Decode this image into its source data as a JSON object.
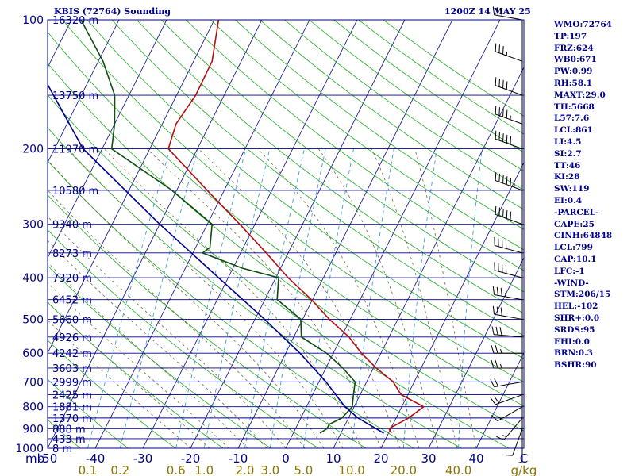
{
  "chart_data": {
    "type": "skew-t log-p sounding",
    "title_left": "KBIS (72764) Sounding",
    "title_right": "1200Z 14 MAY 25",
    "pressure_ticks": [
      100,
      200,
      300,
      400,
      500,
      600,
      700,
      800,
      900,
      1000
    ],
    "temperature_ticks": [
      "-50",
      "-40",
      "-30",
      "-20",
      "-10",
      "0",
      "10",
      "20",
      "30",
      "40",
      "C"
    ],
    "temperature_ticks_values": [
      -50,
      -40,
      -30,
      -20,
      -10,
      0,
      10,
      20,
      30,
      40
    ],
    "mixing_ratio_ticks": [
      "0.1",
      "0.2",
      "0.6",
      "1.0",
      "2.0",
      "3.0",
      "5.0",
      "10.0",
      "20.0",
      "40.0",
      "g/kg"
    ],
    "mixing_ratio_values": [
      0.1,
      0.2,
      0.6,
      1.0,
      2.0,
      3.0,
      5.0,
      10.0,
      20.0,
      40.0
    ],
    "mb_label": "mb",
    "height_labels": [
      {
        "p": 100,
        "text": "16320 m"
      },
      {
        "p": 150,
        "text": "13750 m"
      },
      {
        "p": 200,
        "text": "11970 m"
      },
      {
        "p": 250,
        "text": "10580 m"
      },
      {
        "p": 300,
        "text": "9340 m"
      },
      {
        "p": 350,
        "text": "8273 m"
      },
      {
        "p": 400,
        "text": "7320 m"
      },
      {
        "p": 450,
        "text": "6452 m"
      },
      {
        "p": 500,
        "text": "5660 m"
      },
      {
        "p": 550,
        "text": "4926 m"
      },
      {
        "p": 600,
        "text": "4242 m"
      },
      {
        "p": 650,
        "text": "3603 m"
      },
      {
        "p": 700,
        "text": "2999 m"
      },
      {
        "p": 750,
        "text": "2425 m"
      },
      {
        "p": 800,
        "text": "1881 m"
      },
      {
        "p": 850,
        "text": "1370 m"
      },
      {
        "p": 900,
        "text": "888 m"
      },
      {
        "p": 950,
        "text": "433 m"
      },
      {
        "p": 1000,
        "text": "8 m"
      }
    ],
    "series": [
      {
        "name": "Temperature",
        "color": "#b01010",
        "points": [
          {
            "p": 922,
            "t": 20.6
          },
          {
            "p": 900,
            "t": 19.6
          },
          {
            "p": 850,
            "t": 22.6
          },
          {
            "p": 800,
            "t": 24.6
          },
          {
            "p": 750,
            "t": 18.6
          },
          {
            "p": 700,
            "t": 15.6
          },
          {
            "p": 650,
            "t": 10.6
          },
          {
            "p": 600,
            "t": 5.9
          },
          {
            "p": 550,
            "t": 1.6
          },
          {
            "p": 500,
            "t": -4.4
          },
          {
            "p": 450,
            "t": -10.2
          },
          {
            "p": 400,
            "t": -17.4
          },
          {
            "p": 350,
            "t": -24.6
          },
          {
            "p": 300,
            "t": -33.2
          },
          {
            "p": 250,
            "t": -43.6
          },
          {
            "p": 200,
            "t": -56.1
          },
          {
            "p": 175,
            "t": -57.1
          },
          {
            "p": 150,
            "t": -56.0
          },
          {
            "p": 125,
            "t": -56.1
          },
          {
            "p": 100,
            "t": -59.1
          }
        ]
      },
      {
        "name": "Dewpoint",
        "color": "#0d4d0d",
        "points": [
          {
            "p": 922,
            "t": 5.6
          },
          {
            "p": 900,
            "t": 6.6
          },
          {
            "p": 880,
            "t": 6.6
          },
          {
            "p": 850,
            "t": 8.6
          },
          {
            "p": 800,
            "t": 9.6
          },
          {
            "p": 750,
            "t": 8.6
          },
          {
            "p": 700,
            "t": 7.6
          },
          {
            "p": 650,
            "t": 3.6
          },
          {
            "p": 600,
            "t": -1.4
          },
          {
            "p": 550,
            "t": -8.4
          },
          {
            "p": 500,
            "t": -10.4
          },
          {
            "p": 450,
            "t": -17.4
          },
          {
            "p": 400,
            "t": -19.4
          },
          {
            "p": 380,
            "t": -28.0
          },
          {
            "p": 350,
            "t": -38.0
          },
          {
            "p": 340,
            "t": -37.0
          },
          {
            "p": 300,
            "t": -39.0
          },
          {
            "p": 250,
            "t": -51.0
          },
          {
            "p": 200,
            "t": -68.0
          },
          {
            "p": 175,
            "t": -70.0
          },
          {
            "p": 150,
            "t": -73.0
          },
          {
            "p": 125,
            "t": -79.0
          },
          {
            "p": 100,
            "t": -88.0
          }
        ]
      },
      {
        "name": "Parcel",
        "color": "#00008b",
        "points": [
          {
            "p": 922,
            "t": 19.0
          },
          {
            "p": 850,
            "t": 12.0
          },
          {
            "p": 799,
            "t": 8.0
          },
          {
            "p": 700,
            "t": 1.5
          },
          {
            "p": 600,
            "t": -7.0
          },
          {
            "p": 500,
            "t": -18.0
          },
          {
            "p": 400,
            "t": -32.0
          },
          {
            "p": 300,
            "t": -50.0
          },
          {
            "p": 200,
            "t": -74.0
          },
          {
            "p": 120,
            "t": -95.0
          }
        ]
      }
    ],
    "wind_barbs": [
      {
        "p": 922,
        "dir": 180,
        "spd": 5
      },
      {
        "p": 900,
        "dir": 200,
        "spd": 10
      },
      {
        "p": 850,
        "dir": 220,
        "spd": 15
      },
      {
        "p": 800,
        "dir": 240,
        "spd": 15
      },
      {
        "p": 750,
        "dir": 250,
        "spd": 20
      },
      {
        "p": 700,
        "dir": 260,
        "spd": 20
      },
      {
        "p": 650,
        "dir": 270,
        "spd": 25
      },
      {
        "p": 600,
        "dir": 270,
        "spd": 25
      },
      {
        "p": 550,
        "dir": 275,
        "spd": 30
      },
      {
        "p": 500,
        "dir": 280,
        "spd": 30
      },
      {
        "p": 450,
        "dir": 280,
        "spd": 35
      },
      {
        "p": 400,
        "dir": 285,
        "spd": 40
      },
      {
        "p": 350,
        "dir": 285,
        "spd": 45
      },
      {
        "p": 300,
        "dir": 290,
        "spd": 50
      },
      {
        "p": 250,
        "dir": 290,
        "spd": 55
      },
      {
        "p": 200,
        "dir": 290,
        "spd": 50
      },
      {
        "p": 175,
        "dir": 290,
        "spd": 45
      },
      {
        "p": 150,
        "dir": 290,
        "spd": 40
      },
      {
        "p": 125,
        "dir": 290,
        "spd": 35
      },
      {
        "p": 100,
        "dir": 280,
        "spd": 30
      }
    ],
    "colors": {
      "isobar": "#00008b",
      "isotherm": "#00008b",
      "dry_adiabat": "#22aa22",
      "moist_adiabat": "#6a6a3a",
      "mixing_ratio": "#40a0d0",
      "tick_text": "#00008b",
      "mixing_ratio_text": "#8b7500"
    }
  },
  "indices": [
    "WMO:72764",
    "TP:197",
    "FRZ:624",
    "WB0:671",
    "PW:0.99",
    "RH:58.1",
    "MAXT:29.0",
    "TH:5668",
    "L57:7.6",
    "LCL:861",
    "LI:4.5",
    "SI:2.7",
    "TT:46",
    "KI:28",
    "SW:119",
    "EI:0.4",
    "-PARCEL-",
    "CAPE:25",
    "CINH:64848",
    "LCL:799",
    "CAP:10.1",
    "LFC:-1",
    "-WIND-",
    "STM:206/15",
    "HEL:-102",
    "SHR+:0.0",
    "SRDS:95",
    "EHI:0.0",
    "BRN:0.3",
    "BSHR:90"
  ]
}
